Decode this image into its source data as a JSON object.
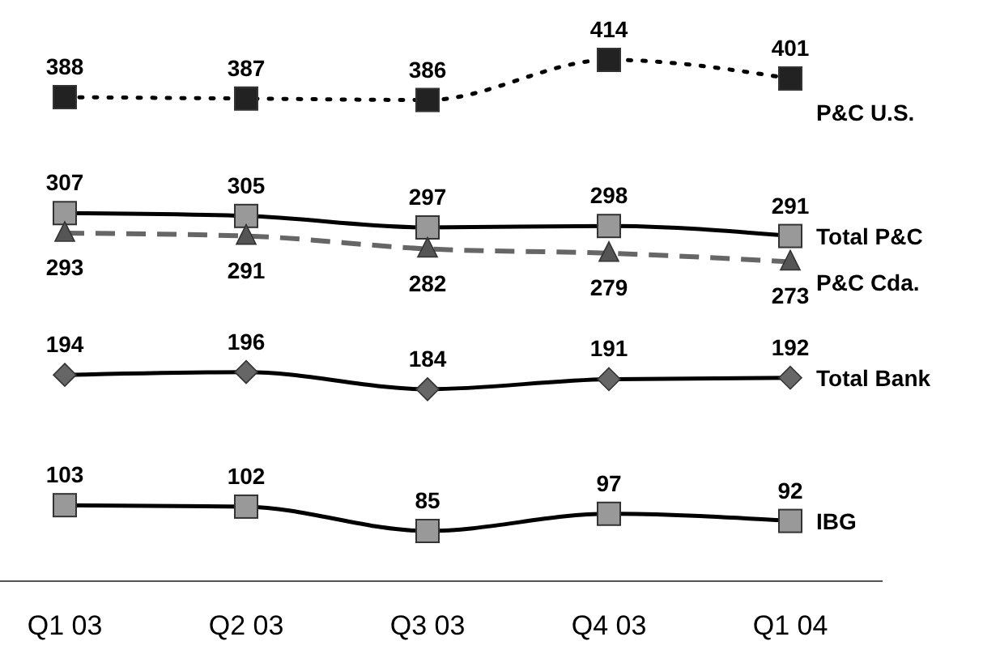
{
  "chart_data": {
    "type": "line",
    "categories": [
      "Q1 03",
      "Q2 03",
      "Q3 03",
      "Q4 03",
      "Q1 04"
    ],
    "tick_labels": "x",
    "data_labels": true,
    "series": [
      {
        "name": "P&C U.S.",
        "color": "#000000",
        "values": [
          388,
          387,
          386,
          414,
          401
        ],
        "marker": "square",
        "line_style": "dotted"
      },
      {
        "name": "Total P&C",
        "color": "#000000",
        "values": [
          307,
          305,
          297,
          298,
          291
        ],
        "marker": "square",
        "line_style": "solid"
      },
      {
        "name": "P&C Cda.",
        "color": "#666666",
        "values": [
          293,
          291,
          282,
          279,
          273
        ],
        "marker": "triangle",
        "line_style": "dashed"
      },
      {
        "name": "Total Bank",
        "color": "#000000",
        "values": [
          194,
          196,
          184,
          191,
          192
        ],
        "marker": "diamond",
        "line_style": "solid"
      },
      {
        "name": "IBG",
        "color": "#000000",
        "values": [
          103,
          102,
          85,
          97,
          92
        ],
        "marker": "square",
        "line_style": "solid"
      }
    ]
  }
}
